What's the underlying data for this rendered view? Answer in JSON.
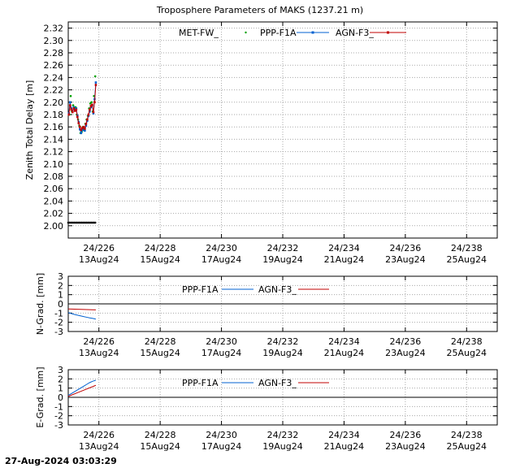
{
  "footer": {
    "timestamp": "27-Aug-2024 03:03:29"
  },
  "colors": {
    "met": "#00a000",
    "ppp": "#0060d0",
    "agn": "#c00000",
    "grid": "#aaaaaa",
    "axis": "#000000",
    "black_pts": "#000000"
  },
  "x_ticks": [
    {
      "top": "24/226",
      "bottom": "13Aug24"
    },
    {
      "top": "24/228",
      "bottom": "15Aug24"
    },
    {
      "top": "24/230",
      "bottom": "17Aug24"
    },
    {
      "top": "24/232",
      "bottom": "19Aug24"
    },
    {
      "top": "24/234",
      "bottom": "21Aug24"
    },
    {
      "top": "24/236",
      "bottom": "23Aug24"
    },
    {
      "top": "24/238",
      "bottom": "25Aug24"
    }
  ],
  "chart_data": [
    {
      "type": "line",
      "title": "Troposphere Parameters of MAKS (1237.21 m)",
      "ylabel": "Zenith Total Delay [m]",
      "xlabel": "",
      "xlim": [
        225.0,
        239.0
      ],
      "ylim": [
        1.98,
        2.33
      ],
      "yticks": [
        2.0,
        2.02,
        2.04,
        2.06,
        2.08,
        2.1,
        2.12,
        2.14,
        2.16,
        2.18,
        2.2,
        2.22,
        2.24,
        2.26,
        2.28,
        2.3,
        2.32
      ],
      "ytick_labels": [
        "2.00",
        "2.02",
        "2.04",
        "2.06",
        "2.08",
        "2.10",
        "2.12",
        "2.14",
        "2.16",
        "2.18",
        "2.20",
        "2.22",
        "2.24",
        "2.26",
        "2.28",
        "2.30",
        "2.32"
      ],
      "legend": [
        "MET-FW_",
        "PPP-F1A",
        "AGN-F3_"
      ],
      "series": [
        {
          "name": "MET-FW_",
          "style": "points",
          "color": "#00a000",
          "x": [
            225.04,
            225.08,
            225.12,
            225.16,
            225.2,
            225.24,
            225.28,
            225.32,
            225.36,
            225.4,
            225.44,
            225.48,
            225.52,
            225.56,
            225.6,
            225.64,
            225.68,
            225.72,
            225.76,
            225.8,
            225.84,
            225.88
          ],
          "y": [
            2.18,
            2.21,
            2.185,
            2.195,
            2.19,
            2.192,
            2.18,
            2.172,
            2.162,
            2.15,
            2.152,
            2.16,
            2.155,
            2.165,
            2.172,
            2.178,
            2.19,
            2.198,
            2.2,
            2.185,
            2.21,
            2.242
          ]
        },
        {
          "name": "PPP-F1A",
          "style": "line-points",
          "color": "#0060d0",
          "x": [
            225.02,
            225.06,
            225.1,
            225.14,
            225.18,
            225.22,
            225.26,
            225.3,
            225.34,
            225.38,
            225.42,
            225.46,
            225.5,
            225.54,
            225.58,
            225.62,
            225.66,
            225.7,
            225.74,
            225.78,
            225.82,
            225.86,
            225.9
          ],
          "y": [
            2.182,
            2.2,
            2.19,
            2.186,
            2.192,
            2.188,
            2.19,
            2.178,
            2.168,
            2.156,
            2.15,
            2.155,
            2.158,
            2.154,
            2.162,
            2.17,
            2.178,
            2.185,
            2.192,
            2.195,
            2.182,
            2.205,
            2.232
          ]
        },
        {
          "name": "AGN-F3_",
          "style": "line-points",
          "color": "#c00000",
          "x": [
            225.02,
            225.06,
            225.1,
            225.14,
            225.18,
            225.22,
            225.26,
            225.3,
            225.34,
            225.38,
            225.42,
            225.46,
            225.5,
            225.54,
            225.58,
            225.62,
            225.66,
            225.7,
            225.74,
            225.78,
            225.82,
            225.86,
            225.9
          ],
          "y": [
            2.18,
            2.195,
            2.188,
            2.184,
            2.19,
            2.186,
            2.188,
            2.176,
            2.166,
            2.16,
            2.155,
            2.158,
            2.16,
            2.157,
            2.165,
            2.172,
            2.18,
            2.188,
            2.194,
            2.196,
            2.184,
            2.2,
            2.228
          ]
        },
        {
          "name": "MET",
          "style": "points",
          "color": "#000000",
          "x": [
            225.0,
            225.04,
            225.08,
            225.12,
            225.16,
            225.2,
            225.24,
            225.28,
            225.32,
            225.36,
            225.4,
            225.44,
            225.48,
            225.52,
            225.56,
            225.6,
            225.64,
            225.68,
            225.72,
            225.76,
            225.8,
            225.84,
            225.88
          ],
          "y": [
            2.005,
            2.005,
            2.005,
            2.005,
            2.005,
            2.005,
            2.005,
            2.005,
            2.005,
            2.005,
            2.005,
            2.005,
            2.005,
            2.005,
            2.005,
            2.005,
            2.005,
            2.005,
            2.005,
            2.005,
            2.005,
            2.005,
            2.005
          ]
        }
      ]
    },
    {
      "type": "line",
      "title": "",
      "ylabel": "N-Grad. [mm]",
      "xlabel": "",
      "xlim": [
        225.0,
        239.0
      ],
      "ylim": [
        -3,
        3
      ],
      "yticks": [
        -3,
        -2,
        -1,
        0,
        1,
        2,
        3
      ],
      "ytick_labels": [
        "-3",
        "-2",
        "-1",
        "0",
        "1",
        "2",
        "3"
      ],
      "legend": [
        "PPP-F1A",
        "AGN-F3_"
      ],
      "series": [
        {
          "name": "PPP-F1A",
          "style": "line",
          "color": "#0060d0",
          "x": [
            225.0,
            225.1,
            225.2,
            225.3,
            225.4,
            225.5,
            225.6,
            225.7,
            225.8,
            225.9
          ],
          "y": [
            -0.95,
            -1.05,
            -1.15,
            -1.22,
            -1.3,
            -1.38,
            -1.45,
            -1.52,
            -1.58,
            -1.65
          ]
        },
        {
          "name": "AGN-F3_",
          "style": "line",
          "color": "#c00000",
          "x": [
            225.0,
            225.3,
            225.6,
            225.9
          ],
          "y": [
            -0.55,
            -0.58,
            -0.62,
            -0.65
          ]
        }
      ]
    },
    {
      "type": "line",
      "title": "",
      "ylabel": "E-Grad. [mm]",
      "xlabel": "",
      "xlim": [
        225.0,
        239.0
      ],
      "ylim": [
        -3,
        3
      ],
      "yticks": [
        -3,
        -2,
        -1,
        0,
        1,
        2,
        3
      ],
      "ytick_labels": [
        "-3",
        "-2",
        "-1",
        "0",
        "1",
        "2",
        "3"
      ],
      "legend": [
        "PPP-F1A",
        "AGN-F3_"
      ],
      "series": [
        {
          "name": "PPP-F1A",
          "style": "line",
          "color": "#0060d0",
          "x": [
            225.0,
            225.1,
            225.2,
            225.3,
            225.4,
            225.5,
            225.6,
            225.7,
            225.8,
            225.9
          ],
          "y": [
            0.2,
            0.4,
            0.6,
            0.8,
            1.0,
            1.2,
            1.4,
            1.6,
            1.75,
            1.85
          ]
        },
        {
          "name": "AGN-F3_",
          "style": "line",
          "color": "#c00000",
          "x": [
            225.0,
            225.3,
            225.6,
            225.9
          ],
          "y": [
            0.1,
            0.5,
            0.9,
            1.3
          ]
        }
      ]
    }
  ]
}
